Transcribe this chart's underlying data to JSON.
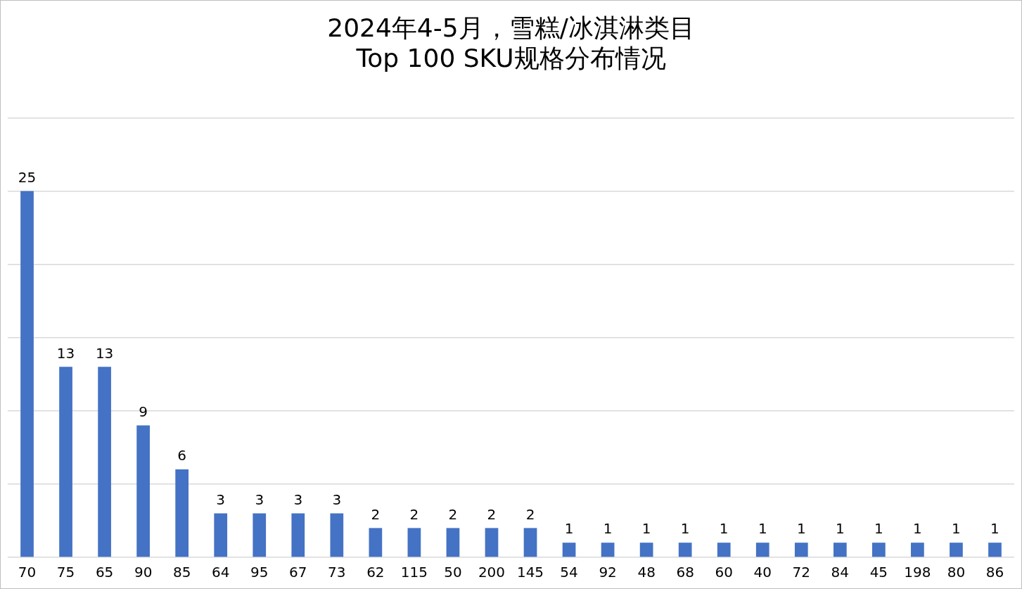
{
  "chart_data": {
    "type": "bar",
    "title": "2024年4-5月，雪糕/冰淇淋类目\nTop 100 SKU规格分布情况",
    "categories": [
      "70",
      "75",
      "65",
      "90",
      "85",
      "64",
      "95",
      "67",
      "73",
      "62",
      "115",
      "50",
      "200",
      "145",
      "54",
      "92",
      "48",
      "68",
      "60",
      "40",
      "72",
      "84",
      "45",
      "198",
      "80",
      "86"
    ],
    "values": [
      25,
      13,
      13,
      9,
      6,
      3,
      3,
      3,
      3,
      2,
      2,
      2,
      2,
      2,
      1,
      1,
      1,
      1,
      1,
      1,
      1,
      1,
      1,
      1,
      1,
      1
    ],
    "color": "#4472c4",
    "ylim": [
      0,
      30
    ],
    "yticks": [
      {
        "value": 0,
        "label": null
      },
      {
        "value": 5,
        "label": null
      },
      {
        "value": 10,
        "label": null
      },
      {
        "value": 15,
        "label": null
      },
      {
        "value": 20,
        "label": null
      },
      {
        "value": 25,
        "label": null
      },
      {
        "value": 30,
        "label": null
      }
    ],
    "tick_labels": "x",
    "grid": "y",
    "data_labels": true,
    "legend": false
  }
}
